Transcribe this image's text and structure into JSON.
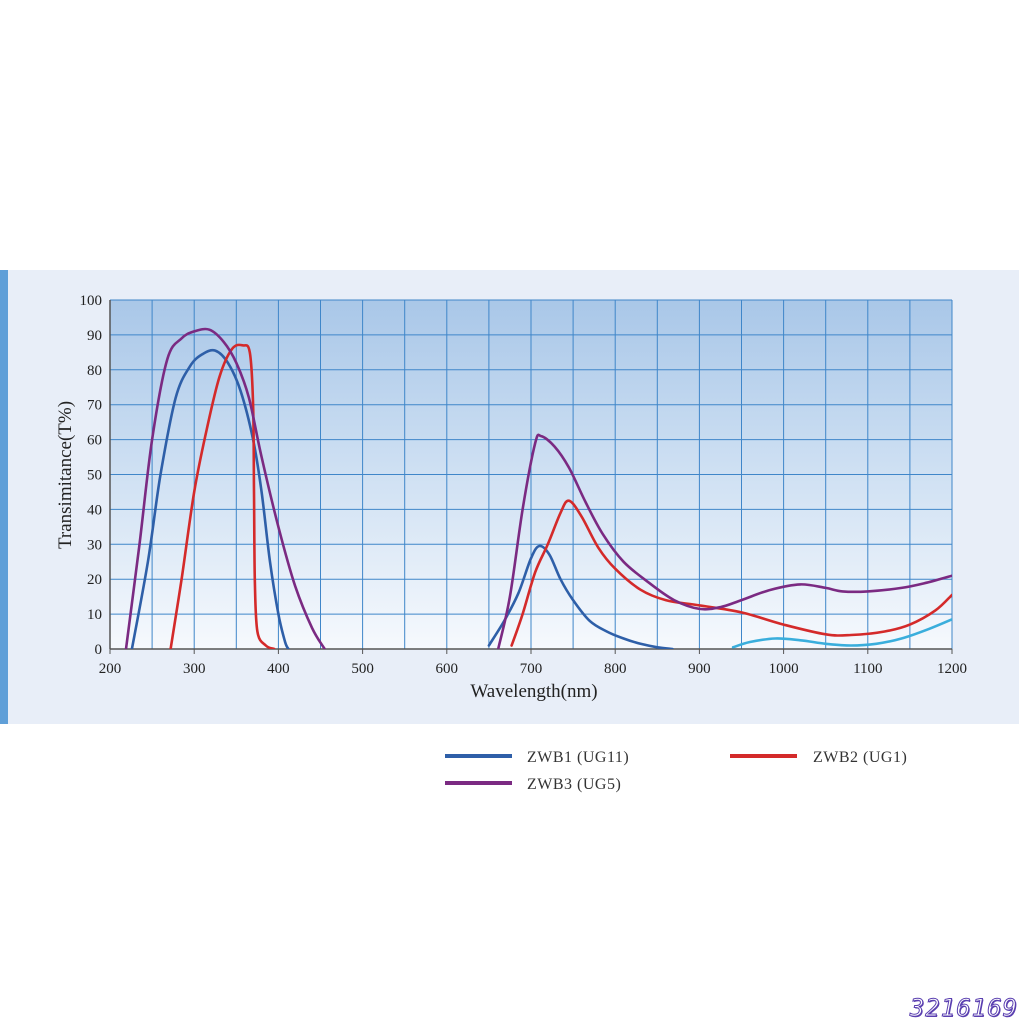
{
  "chart_data": {
    "type": "line",
    "xlabel": "Wavelength(nm)",
    "ylabel": "Transimitance(T%)",
    "xlim": [
      200,
      1200
    ],
    "ylim": [
      0,
      100
    ],
    "x_ticks": [
      200,
      300,
      400,
      500,
      600,
      700,
      800,
      900,
      1000,
      1100,
      1200
    ],
    "y_ticks": [
      0,
      10,
      20,
      30,
      40,
      50,
      60,
      70,
      80,
      90,
      100
    ],
    "grid": true,
    "legend_position": "bottom-right",
    "series": [
      {
        "name": "ZWB1 (UG11)",
        "color": "#2e5fa8",
        "segments": [
          [
            [
              226,
              0
            ],
            [
              245,
              25
            ],
            [
              260,
              50
            ],
            [
              278,
              72
            ],
            [
              295,
              81
            ],
            [
              310,
              84.5
            ],
            [
              325,
              85.5
            ],
            [
              340,
              82
            ],
            [
              355,
              74
            ],
            [
              370,
              60
            ],
            [
              380,
              45
            ],
            [
              390,
              25
            ],
            [
              400,
              10
            ],
            [
              408,
              2
            ],
            [
              412,
              0
            ]
          ],
          [
            [
              650,
              1
            ],
            [
              668,
              8
            ],
            [
              685,
              16
            ],
            [
              700,
              26
            ],
            [
              710,
              29.5
            ],
            [
              722,
              27
            ],
            [
              735,
              20
            ],
            [
              750,
              14
            ],
            [
              770,
              8
            ],
            [
              790,
              5
            ],
            [
              810,
              3
            ],
            [
              830,
              1.5
            ],
            [
              850,
              0.5
            ],
            [
              868,
              0
            ]
          ]
        ]
      },
      {
        "name": "ZWB2 (UG1)",
        "color": "#d42a2a",
        "segments": [
          [
            [
              272,
              0
            ],
            [
              285,
              20
            ],
            [
              300,
              45
            ],
            [
              315,
              63
            ],
            [
              330,
              78
            ],
            [
              345,
              86
            ],
            [
              358,
              87
            ],
            [
              366,
              85
            ],
            [
              370,
              70
            ],
            [
              371,
              45
            ],
            [
              372,
              20
            ],
            [
              375,
              5
            ],
            [
              385,
              1
            ],
            [
              395,
              0
            ]
          ],
          [
            [
              677,
              1
            ],
            [
              690,
              10
            ],
            [
              705,
              22
            ],
            [
              720,
              30
            ],
            [
              735,
              39
            ],
            [
              745,
              42.5
            ],
            [
              760,
              38
            ],
            [
              780,
              29
            ],
            [
              800,
              23
            ],
            [
              830,
              17
            ],
            [
              860,
              14
            ],
            [
              900,
              12.5
            ],
            [
              950,
              10.5
            ],
            [
              1000,
              7
            ],
            [
              1050,
              4.2
            ],
            [
              1080,
              4
            ],
            [
              1120,
              5
            ],
            [
              1150,
              7
            ],
            [
              1180,
              11
            ],
            [
              1200,
              15.5
            ]
          ]
        ]
      },
      {
        "name": "ZWB3 (UG5)",
        "color": "#7b2a82",
        "segments": [
          [
            [
              219,
              0
            ],
            [
              235,
              30
            ],
            [
              250,
              60
            ],
            [
              268,
              83
            ],
            [
              285,
              89
            ],
            [
              300,
              91
            ],
            [
              318,
              91.5
            ],
            [
              335,
              88
            ],
            [
              350,
              82
            ],
            [
              365,
              72
            ],
            [
              380,
              55
            ],
            [
              400,
              35
            ],
            [
              420,
              18
            ],
            [
              440,
              6
            ],
            [
              455,
              0
            ]
          ],
          [
            [
              661,
              0
            ],
            [
              675,
              15
            ],
            [
              690,
              40
            ],
            [
              705,
              59
            ],
            [
              712,
              61
            ],
            [
              728,
              58
            ],
            [
              745,
              52
            ],
            [
              765,
              42
            ],
            [
              785,
              33
            ],
            [
              810,
              25
            ],
            [
              840,
              19
            ],
            [
              870,
              14
            ],
            [
              900,
              11.5
            ],
            [
              925,
              12
            ],
            [
              950,
              14
            ],
            [
              985,
              17
            ],
            [
              1020,
              18.5
            ],
            [
              1050,
              17.5
            ],
            [
              1070,
              16.5
            ],
            [
              1100,
              16.5
            ],
            [
              1140,
              17.5
            ],
            [
              1170,
              19
            ],
            [
              1200,
              21
            ]
          ]
        ]
      },
      {
        "name": "",
        "color": "#3aaedc",
        "segments": [
          [
            [
              940,
              0.5
            ],
            [
              960,
              2
            ],
            [
              990,
              3
            ],
            [
              1020,
              2.5
            ],
            [
              1050,
              1.5
            ],
            [
              1080,
              1
            ],
            [
              1110,
              1.5
            ],
            [
              1140,
              3
            ],
            [
              1170,
              5.5
            ],
            [
              1200,
              8.5
            ]
          ]
        ]
      }
    ]
  },
  "legend": [
    {
      "label": "ZWB1 (UG11)",
      "color": "#2e5fa8"
    },
    {
      "label": "ZWB3 (UG5)",
      "color": "#7b2a82"
    },
    {
      "label": "ZWB2 (UG1)",
      "color": "#d42a2a"
    }
  ],
  "watermark": "3216169"
}
